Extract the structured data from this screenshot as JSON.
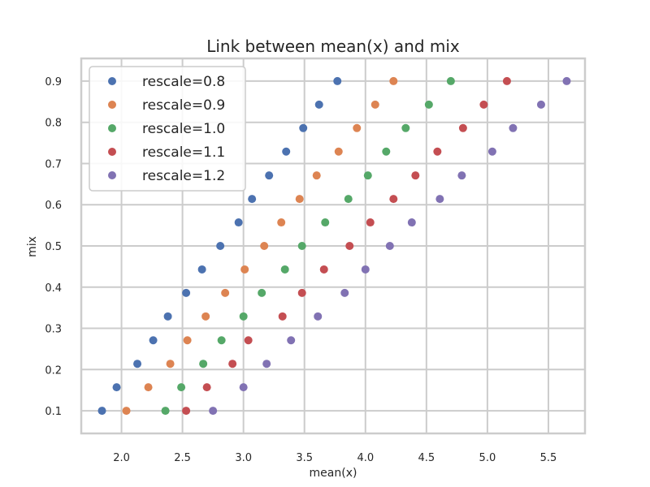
{
  "chart_data": {
    "type": "scatter",
    "title": "Link between mean(x) and mix",
    "xlabel": "mean(x)",
    "ylabel": "mix",
    "xlim": [
      1.67,
      5.8
    ],
    "ylim": [
      0.045,
      0.955
    ],
    "xticks": [
      "2.0",
      "2.5",
      "3.0",
      "3.5",
      "4.0",
      "4.5",
      "5.0",
      "5.5"
    ],
    "yticks": [
      "0.1",
      "0.2",
      "0.3",
      "0.4",
      "0.5",
      "0.6",
      "0.7",
      "0.8",
      "0.9"
    ],
    "grid": true,
    "legend_position": "top-left",
    "series": [
      {
        "name": "rescale=0.8",
        "color": "#4c72b0",
        "x": [
          1.84,
          1.96,
          2.13,
          2.26,
          2.38,
          2.53,
          2.66,
          2.81,
          2.96,
          3.07,
          3.21,
          3.35,
          3.49,
          3.62,
          3.77
        ],
        "y": [
          0.1,
          0.157,
          0.214,
          0.271,
          0.329,
          0.386,
          0.443,
          0.5,
          0.557,
          0.614,
          0.671,
          0.729,
          0.786,
          0.843,
          0.9
        ]
      },
      {
        "name": "rescale=0.9",
        "color": "#dd8452",
        "x": [
          2.04,
          2.22,
          2.4,
          2.54,
          2.69,
          2.85,
          3.01,
          3.17,
          3.31,
          3.46,
          3.6,
          3.78,
          3.93,
          4.08,
          4.23
        ],
        "y": [
          0.1,
          0.157,
          0.214,
          0.271,
          0.329,
          0.386,
          0.443,
          0.5,
          0.557,
          0.614,
          0.671,
          0.729,
          0.786,
          0.843,
          0.9
        ]
      },
      {
        "name": "rescale=1.0",
        "color": "#55a868",
        "x": [
          2.36,
          2.49,
          2.67,
          2.82,
          3.0,
          3.15,
          3.34,
          3.48,
          3.67,
          3.86,
          4.02,
          4.17,
          4.33,
          4.52,
          4.7
        ],
        "y": [
          0.1,
          0.157,
          0.214,
          0.271,
          0.329,
          0.386,
          0.443,
          0.5,
          0.557,
          0.614,
          0.671,
          0.729,
          0.786,
          0.843,
          0.9
        ]
      },
      {
        "name": "rescale=1.1",
        "color": "#c44e52",
        "x": [
          2.53,
          2.7,
          2.91,
          3.04,
          3.32,
          3.48,
          3.66,
          3.87,
          4.04,
          4.23,
          4.41,
          4.59,
          4.8,
          4.97,
          5.16
        ],
        "y": [
          0.1,
          0.157,
          0.214,
          0.271,
          0.329,
          0.386,
          0.443,
          0.5,
          0.557,
          0.614,
          0.671,
          0.729,
          0.786,
          0.843,
          0.9
        ]
      },
      {
        "name": "rescale=1.2",
        "color": "#8172b3",
        "x": [
          2.75,
          3.0,
          3.19,
          3.39,
          3.61,
          3.83,
          4.0,
          4.2,
          4.38,
          4.61,
          4.79,
          5.04,
          5.21,
          5.44,
          5.65
        ],
        "y": [
          0.1,
          0.157,
          0.214,
          0.271,
          0.329,
          0.386,
          0.443,
          0.5,
          0.557,
          0.614,
          0.671,
          0.729,
          0.786,
          0.843,
          0.9
        ]
      }
    ]
  }
}
